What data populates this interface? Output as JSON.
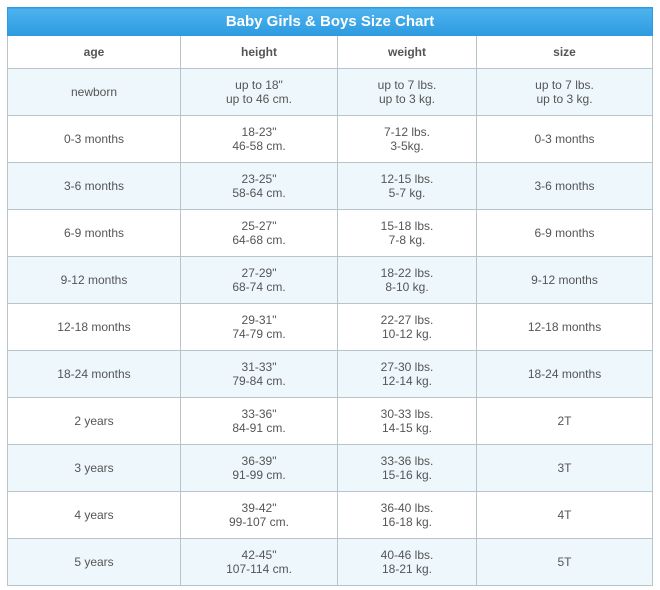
{
  "title": "Baby Girls & Boys Size Chart",
  "columns": [
    "age",
    "height",
    "weight",
    "size"
  ],
  "rows": [
    {
      "age": "newborn",
      "height": [
        "up to 18\"",
        "up to 46 cm."
      ],
      "weight": [
        "up to 7 lbs.",
        "up to 3 kg."
      ],
      "size": [
        "up to 7 lbs.",
        "up to 3 kg."
      ]
    },
    {
      "age": "0-3 months",
      "height": [
        "18-23\"",
        "46-58 cm."
      ],
      "weight": [
        "7-12 lbs.",
        "3-5kg."
      ],
      "size": [
        "0-3 months"
      ]
    },
    {
      "age": "3-6 months",
      "height": [
        "23-25\"",
        "58-64 cm."
      ],
      "weight": [
        "12-15 lbs.",
        "5-7 kg."
      ],
      "size": [
        "3-6 months"
      ]
    },
    {
      "age": "6-9 months",
      "height": [
        "25-27\"",
        "64-68 cm."
      ],
      "weight": [
        "15-18 lbs.",
        "7-8 kg."
      ],
      "size": [
        "6-9 months"
      ]
    },
    {
      "age": "9-12 months",
      "height": [
        "27-29\"",
        "68-74 cm."
      ],
      "weight": [
        "18-22 lbs.",
        "8-10 kg."
      ],
      "size": [
        "9-12 months"
      ]
    },
    {
      "age": "12-18 months",
      "height": [
        "29-31\"",
        "74-79 cm."
      ],
      "weight": [
        "22-27 lbs.",
        "10-12 kg."
      ],
      "size": [
        "12-18 months"
      ]
    },
    {
      "age": "18-24 months",
      "height": [
        "31-33\"",
        "79-84 cm."
      ],
      "weight": [
        "27-30 lbs.",
        "12-14 kg."
      ],
      "size": [
        "18-24 months"
      ]
    },
    {
      "age": "2 years",
      "height": [
        "33-36\"",
        "84-91 cm."
      ],
      "weight": [
        "30-33 lbs.",
        "14-15 kg."
      ],
      "size": [
        "2T"
      ]
    },
    {
      "age": "3 years",
      "height": [
        "36-39\"",
        "91-99 cm."
      ],
      "weight": [
        "33-36 lbs.",
        "15-16 kg."
      ],
      "size": [
        "3T"
      ]
    },
    {
      "age": "4 years",
      "height": [
        "39-42\"",
        "99-107 cm."
      ],
      "weight": [
        "36-40 lbs.",
        "16-18 kg."
      ],
      "size": [
        "4T"
      ]
    },
    {
      "age": "5 years",
      "height": [
        "42-45\"",
        "107-114 cm."
      ],
      "weight": [
        "40-46 lbs.",
        "18-21 kg."
      ],
      "size": [
        "5T"
      ]
    }
  ],
  "colors": {
    "header_blue": "#2d9be0",
    "alt_row": "#eef7fc",
    "border": "#b9c4c9",
    "text": "#555555"
  }
}
